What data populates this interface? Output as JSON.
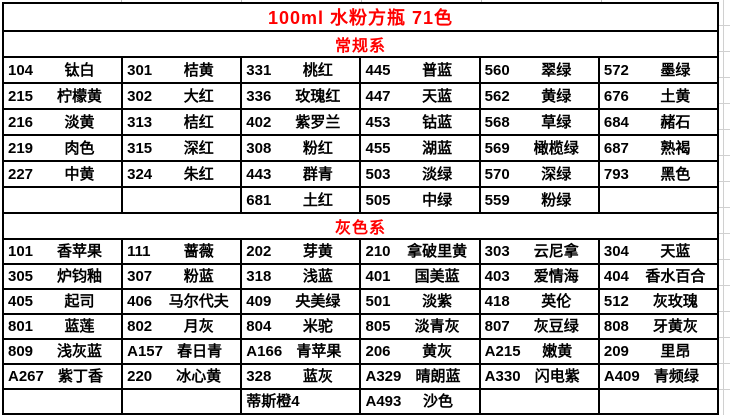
{
  "title": "100ml 水粉方瓶 71色",
  "colors": {
    "accent": "#ff0000",
    "text": "#000000",
    "border": "#000000",
    "gridline": "#d0d0d0"
  },
  "sections": [
    {
      "header": "常规系",
      "rows": [
        [
          {
            "code": "104",
            "name": "钛白"
          },
          {
            "code": "301",
            "name": "桔黄"
          },
          {
            "code": "331",
            "name": "桃红"
          },
          {
            "code": "445",
            "name": "普蓝"
          },
          {
            "code": "560",
            "name": "翠绿"
          },
          {
            "code": "572",
            "name": "墨绿"
          }
        ],
        [
          {
            "code": "215",
            "name": "柠檬黄"
          },
          {
            "code": "302",
            "name": "大红"
          },
          {
            "code": "336",
            "name": "玫瑰红"
          },
          {
            "code": "447",
            "name": "天蓝"
          },
          {
            "code": "562",
            "name": "黄绿"
          },
          {
            "code": "676",
            "name": "土黄"
          }
        ],
        [
          {
            "code": "216",
            "name": "淡黄"
          },
          {
            "code": "313",
            "name": "桔红"
          },
          {
            "code": "402",
            "name": "紫罗兰"
          },
          {
            "code": "453",
            "name": "钴蓝"
          },
          {
            "code": "568",
            "name": "草绿"
          },
          {
            "code": "684",
            "name": "赭石"
          }
        ],
        [
          {
            "code": "219",
            "name": "肉色"
          },
          {
            "code": "315",
            "name": "深红"
          },
          {
            "code": "308",
            "name": "粉红"
          },
          {
            "code": "455",
            "name": "湖蓝"
          },
          {
            "code": "569",
            "name": "橄榄绿"
          },
          {
            "code": "687",
            "name": "熟褐"
          }
        ],
        [
          {
            "code": "227",
            "name": "中黄"
          },
          {
            "code": "324",
            "name": "朱红"
          },
          {
            "code": "443",
            "name": "群青"
          },
          {
            "code": "503",
            "name": "淡绿"
          },
          {
            "code": "570",
            "name": "深绿"
          },
          {
            "code": "793",
            "name": "黑色"
          }
        ],
        [
          {
            "code": "",
            "name": ""
          },
          {
            "code": "",
            "name": ""
          },
          {
            "code": "681",
            "name": "土红"
          },
          {
            "code": "505",
            "name": "中绿"
          },
          {
            "code": "559",
            "name": "粉绿"
          },
          {
            "code": "",
            "name": ""
          }
        ]
      ]
    },
    {
      "header": "灰色系",
      "rows": [
        [
          {
            "code": "101",
            "name": "香苹果"
          },
          {
            "code": "111",
            "name": "蔷薇"
          },
          {
            "code": "202",
            "name": "芽黄"
          },
          {
            "code": "210",
            "name": "拿破里黄"
          },
          {
            "code": "303",
            "name": "云尼拿"
          },
          {
            "code": "304",
            "name": "天蓝"
          }
        ],
        [
          {
            "code": "305",
            "name": "炉钧釉"
          },
          {
            "code": "307",
            "name": "粉蓝"
          },
          {
            "code": "318",
            "name": "浅蓝"
          },
          {
            "code": "401",
            "name": "国美蓝"
          },
          {
            "code": "403",
            "name": "爱情海"
          },
          {
            "code": "404",
            "name": "香水百合"
          }
        ],
        [
          {
            "code": "405",
            "name": "起司"
          },
          {
            "code": "406",
            "name": "马尔代夫"
          },
          {
            "code": "409",
            "name": "央美绿"
          },
          {
            "code": "501",
            "name": "淡紫"
          },
          {
            "code": "418",
            "name": "英伦"
          },
          {
            "code": "512",
            "name": "灰玫瑰"
          }
        ],
        [
          {
            "code": "801",
            "name": "蓝莲"
          },
          {
            "code": "802",
            "name": "月灰"
          },
          {
            "code": "804",
            "name": "米驼"
          },
          {
            "code": "805",
            "name": "淡青灰"
          },
          {
            "code": "807",
            "name": "灰豆绿"
          },
          {
            "code": "808",
            "name": "牙黄灰"
          }
        ],
        [
          {
            "code": "809",
            "name": "浅灰蓝"
          },
          {
            "code": "A157",
            "name": "春日青"
          },
          {
            "code": "A166",
            "name": "青苹果"
          },
          {
            "code": "206",
            "name": "黄灰"
          },
          {
            "code": "A215",
            "name": "嫩黄"
          },
          {
            "code": "209",
            "name": "里昂"
          }
        ],
        [
          {
            "code": "A267",
            "name": "紫丁香"
          },
          {
            "code": "220",
            "name": "冰心黄"
          },
          {
            "code": "328",
            "name": "蓝灰"
          },
          {
            "code": "A329",
            "name": "晴朗蓝"
          },
          {
            "code": "A330",
            "name": "闪电紫"
          },
          {
            "code": "A409",
            "name": "青频绿"
          }
        ],
        [
          {
            "code": "",
            "name": ""
          },
          {
            "code": "",
            "name": ""
          },
          {
            "code": "蒂斯橙4",
            "name": ""
          },
          {
            "code": "A493",
            "name": "沙色"
          },
          {
            "code": "",
            "name": ""
          },
          {
            "code": "",
            "name": ""
          }
        ]
      ]
    }
  ]
}
